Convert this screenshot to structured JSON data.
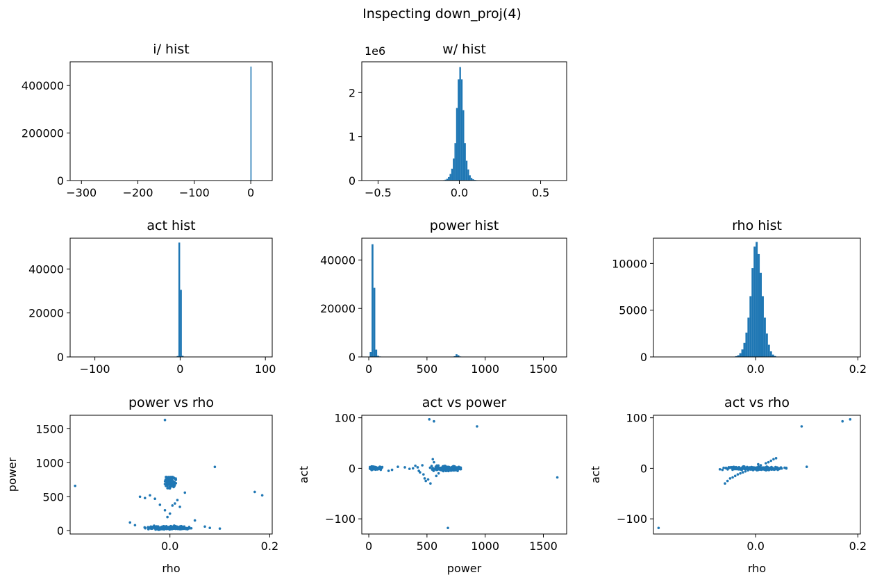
{
  "figure": {
    "title": "Inspecting down_proj(4)"
  },
  "colors": {
    "series": "#1f77b4",
    "axis": "#000000",
    "background": "#ffffff"
  },
  "chart_data": [
    {
      "id": "i-hist",
      "type": "bar",
      "title": "i/ hist",
      "xlabel": "",
      "ylabel": "",
      "xlim": [
        -320,
        38
      ],
      "ylim": [
        0,
        500000
      ],
      "xticks": [
        {
          "v": -300,
          "label": "−300"
        },
        {
          "v": -200,
          "label": "−200"
        },
        {
          "v": -100,
          "label": "−100"
        },
        {
          "v": 0,
          "label": "0"
        }
      ],
      "yticks": [
        {
          "v": 0,
          "label": "0"
        },
        {
          "v": 200000,
          "label": "200000"
        },
        {
          "v": 400000,
          "label": "400000"
        }
      ],
      "bins": [
        {
          "x0": -0.6,
          "x1": 0.6,
          "count": 480000
        }
      ],
      "offset_text": ""
    },
    {
      "id": "w-hist",
      "type": "bar",
      "title": "w/ hist",
      "xlabel": "",
      "ylabel": "",
      "xlim": [
        -0.6,
        0.66
      ],
      "ylim": [
        0,
        2.7
      ],
      "xticks": [
        {
          "v": -0.5,
          "label": "−0.5"
        },
        {
          "v": 0.0,
          "label": "0.0"
        },
        {
          "v": 0.5,
          "label": "0.5"
        }
      ],
      "yticks": [
        {
          "v": 0,
          "label": "0"
        },
        {
          "v": 1,
          "label": "1"
        },
        {
          "v": 2,
          "label": "2"
        }
      ],
      "offset_text": "1e6",
      "bins": [
        {
          "x0": -0.1,
          "x1": -0.09,
          "count": 0.01
        },
        {
          "x0": -0.09,
          "x1": -0.08,
          "count": 0.02
        },
        {
          "x0": -0.08,
          "x1": -0.07,
          "count": 0.04
        },
        {
          "x0": -0.07,
          "x1": -0.06,
          "count": 0.08
        },
        {
          "x0": -0.06,
          "x1": -0.05,
          "count": 0.15
        },
        {
          "x0": -0.05,
          "x1": -0.04,
          "count": 0.27
        },
        {
          "x0": -0.04,
          "x1": -0.03,
          "count": 0.5
        },
        {
          "x0": -0.03,
          "x1": -0.02,
          "count": 0.85
        },
        {
          "x0": -0.02,
          "x1": -0.01,
          "count": 1.65
        },
        {
          "x0": -0.01,
          "x1": 0.0,
          "count": 2.3
        },
        {
          "x0": 0.0,
          "x1": 0.01,
          "count": 2.58
        },
        {
          "x0": 0.01,
          "x1": 0.02,
          "count": 2.3
        },
        {
          "x0": 0.02,
          "x1": 0.03,
          "count": 1.6
        },
        {
          "x0": 0.03,
          "x1": 0.04,
          "count": 0.85
        },
        {
          "x0": 0.04,
          "x1": 0.05,
          "count": 0.45
        },
        {
          "x0": 0.05,
          "x1": 0.06,
          "count": 0.25
        },
        {
          "x0": 0.06,
          "x1": 0.07,
          "count": 0.12
        },
        {
          "x0": 0.07,
          "x1": 0.08,
          "count": 0.06
        },
        {
          "x0": 0.08,
          "x1": 0.09,
          "count": 0.03
        },
        {
          "x0": 0.09,
          "x1": 0.1,
          "count": 0.015
        },
        {
          "x0": 0.1,
          "x1": 0.11,
          "count": 0.01
        },
        {
          "x0": 0.11,
          "x1": 0.12,
          "count": 0.006
        },
        {
          "x0": 0.12,
          "x1": 0.13,
          "count": 0.004
        }
      ]
    },
    {
      "id": "act-hist",
      "type": "bar",
      "title": "act hist",
      "xlabel": "",
      "ylabel": "",
      "xlim": [
        -129,
        108
      ],
      "ylim": [
        0,
        54000
      ],
      "xticks": [
        {
          "v": -100,
          "label": "−100"
        },
        {
          "v": 0,
          "label": "0"
        },
        {
          "v": 100,
          "label": "100"
        }
      ],
      "yticks": [
        {
          "v": 0,
          "label": "0"
        },
        {
          "v": 20000,
          "label": "20000"
        },
        {
          "v": 40000,
          "label": "40000"
        }
      ],
      "offset_text": "",
      "bins": [
        {
          "x0": -4.0,
          "x1": -2.0,
          "count": 400
        },
        {
          "x0": -2.0,
          "x1": 0.0,
          "count": 52000
        },
        {
          "x0": 0.0,
          "x1": 2.0,
          "count": 30500
        },
        {
          "x0": 2.0,
          "x1": 4.0,
          "count": 500
        }
      ]
    },
    {
      "id": "power-hist",
      "type": "bar",
      "title": "power hist",
      "xlabel": "",
      "ylabel": "",
      "xlim": [
        -60,
        1700
      ],
      "ylim": [
        0,
        49000
      ],
      "xticks": [
        {
          "v": 0,
          "label": "0"
        },
        {
          "v": 500,
          "label": "500"
        },
        {
          "v": 1000,
          "label": "1000"
        },
        {
          "v": 1500,
          "label": "1500"
        }
      ],
      "yticks": [
        {
          "v": 0,
          "label": "0"
        },
        {
          "v": 20000,
          "label": "20000"
        },
        {
          "v": 40000,
          "label": "40000"
        }
      ],
      "offset_text": "",
      "bins": [
        {
          "x0": 8,
          "x1": 24,
          "count": 2000
        },
        {
          "x0": 24,
          "x1": 40,
          "count": 46500
        },
        {
          "x0": 40,
          "x1": 56,
          "count": 28500
        },
        {
          "x0": 56,
          "x1": 72,
          "count": 3000
        },
        {
          "x0": 72,
          "x1": 88,
          "count": 500
        },
        {
          "x0": 88,
          "x1": 104,
          "count": 200
        },
        {
          "x0": 730,
          "x1": 746,
          "count": 300
        },
        {
          "x0": 746,
          "x1": 762,
          "count": 1100
        },
        {
          "x0": 762,
          "x1": 778,
          "count": 700
        },
        {
          "x0": 778,
          "x1": 794,
          "count": 200
        }
      ]
    },
    {
      "id": "rho-hist",
      "type": "bar",
      "title": "rho hist",
      "xlabel": "",
      "ylabel": "",
      "xlim": [
        -0.2,
        0.205
      ],
      "ylim": [
        0,
        12700
      ],
      "xticks": [
        {
          "v": 0.0,
          "label": "0.0"
        },
        {
          "v": 0.2,
          "label": "0.2"
        }
      ],
      "yticks": [
        {
          "v": 0,
          "label": "0"
        },
        {
          "v": 5000,
          "label": "5000"
        },
        {
          "v": 10000,
          "label": "10000"
        }
      ],
      "offset_text": "",
      "bins": [
        {
          "x0": -0.04,
          "x1": -0.036,
          "count": 80
        },
        {
          "x0": -0.036,
          "x1": -0.032,
          "count": 180
        },
        {
          "x0": -0.032,
          "x1": -0.028,
          "count": 400
        },
        {
          "x0": -0.028,
          "x1": -0.024,
          "count": 800
        },
        {
          "x0": -0.024,
          "x1": -0.02,
          "count": 1500
        },
        {
          "x0": -0.02,
          "x1": -0.016,
          "count": 2600
        },
        {
          "x0": -0.016,
          "x1": -0.012,
          "count": 4200
        },
        {
          "x0": -0.012,
          "x1": -0.008,
          "count": 6500
        },
        {
          "x0": -0.008,
          "x1": -0.004,
          "count": 9500
        },
        {
          "x0": -0.004,
          "x1": 0.0,
          "count": 11800
        },
        {
          "x0": 0.0,
          "x1": 0.004,
          "count": 12300
        },
        {
          "x0": 0.004,
          "x1": 0.008,
          "count": 11000
        },
        {
          "x0": 0.008,
          "x1": 0.012,
          "count": 9000
        },
        {
          "x0": 0.012,
          "x1": 0.016,
          "count": 6500
        },
        {
          "x0": 0.016,
          "x1": 0.02,
          "count": 4200
        },
        {
          "x0": 0.02,
          "x1": 0.024,
          "count": 2500
        },
        {
          "x0": 0.024,
          "x1": 0.028,
          "count": 1300
        },
        {
          "x0": 0.028,
          "x1": 0.032,
          "count": 600
        },
        {
          "x0": 0.032,
          "x1": 0.036,
          "count": 250
        },
        {
          "x0": 0.036,
          "x1": 0.04,
          "count": 100
        }
      ]
    },
    {
      "id": "power-vs-rho",
      "type": "scatter",
      "title": "power vs rho",
      "xlabel": "rho",
      "ylabel": "power",
      "xlim": [
        -0.2,
        0.205
      ],
      "ylim": [
        -50,
        1700
      ],
      "xticks": [
        {
          "v": 0.0,
          "label": "0.0"
        },
        {
          "v": 0.2,
          "label": "0.2"
        }
      ],
      "yticks": [
        {
          "v": 0,
          "label": "0"
        },
        {
          "v": 500,
          "label": "500"
        },
        {
          "v": 1000,
          "label": "1000"
        },
        {
          "v": 1500,
          "label": "1500"
        }
      ],
      "offset_text": "",
      "clusters": [
        {
          "cx": 0.0,
          "cy": 40,
          "sx": 0.02,
          "sy": 12,
          "n": 220,
          "xmin": -0.06,
          "xmax": 0.06,
          "ymin": 5,
          "ymax": 120
        },
        {
          "cx": 0.0,
          "cy": 720,
          "sx": 0.006,
          "sy": 40,
          "n": 110,
          "xmin": -0.015,
          "xmax": 0.012,
          "ymin": 560,
          "ymax": 790
        }
      ],
      "points": [
        [
          -0.19,
          660
        ],
        [
          -0.01,
          1630
        ],
        [
          0.09,
          940
        ],
        [
          0.17,
          570
        ],
        [
          0.185,
          520
        ],
        [
          0.1,
          30
        ],
        [
          -0.06,
          500
        ],
        [
          -0.05,
          480
        ],
        [
          -0.04,
          520
        ],
        [
          -0.03,
          470
        ],
        [
          -0.02,
          380
        ],
        [
          -0.01,
          300
        ],
        [
          0.005,
          370
        ],
        [
          0.01,
          400
        ],
        [
          0.015,
          450
        ],
        [
          0.02,
          350
        ],
        [
          0.03,
          560
        ],
        [
          -0.005,
          200
        ],
        [
          0.0,
          250
        ],
        [
          -0.08,
          120
        ],
        [
          0.07,
          60
        ],
        [
          0.08,
          40
        ],
        [
          -0.07,
          80
        ],
        [
          0.05,
          150
        ]
      ]
    },
    {
      "id": "act-vs-power",
      "type": "scatter",
      "title": "act vs power",
      "xlabel": "power",
      "ylabel": "act",
      "xlim": [
        -60,
        1700
      ],
      "ylim": [
        -130,
        105
      ],
      "xticks": [
        {
          "v": 0,
          "label": "0"
        },
        {
          "v": 500,
          "label": "500"
        },
        {
          "v": 1000,
          "label": "1000"
        },
        {
          "v": 1500,
          "label": "1500"
        }
      ],
      "yticks": [
        {
          "v": -100,
          "label": "−100"
        },
        {
          "v": 0,
          "label": "0"
        },
        {
          "v": 100,
          "label": "100"
        }
      ],
      "offset_text": "",
      "clusters": [
        {
          "cx": 50,
          "cy": 0,
          "sx": 25,
          "sy": 1.5,
          "n": 120,
          "xmin": 10,
          "xmax": 120,
          "ymin": -4,
          "ymax": 4
        },
        {
          "cx": 680,
          "cy": 0,
          "sx": 60,
          "sy": 2.5,
          "n": 180,
          "xmin": 520,
          "xmax": 790,
          "ymin": -8,
          "ymax": 8
        }
      ],
      "points": [
        [
          520,
          97
        ],
        [
          560,
          93
        ],
        [
          930,
          83
        ],
        [
          1620,
          -18
        ],
        [
          680,
          -118
        ],
        [
          250,
          3
        ],
        [
          310,
          2
        ],
        [
          420,
          2
        ],
        [
          430,
          -5
        ],
        [
          440,
          -8
        ],
        [
          470,
          -12
        ],
        [
          480,
          -20
        ],
        [
          490,
          -25
        ],
        [
          510,
          -22
        ],
        [
          530,
          -30
        ],
        [
          550,
          18
        ],
        [
          560,
          12
        ],
        [
          580,
          -15
        ],
        [
          600,
          -10
        ],
        [
          170,
          -5
        ],
        [
          200,
          -3
        ],
        [
          380,
          0
        ],
        [
          400,
          5
        ],
        [
          460,
          6
        ],
        [
          350,
          -1
        ]
      ]
    },
    {
      "id": "act-vs-rho",
      "type": "scatter",
      "title": "act vs rho",
      "xlabel": "rho",
      "ylabel": "act",
      "xlim": [
        -0.2,
        0.205
      ],
      "ylim": [
        -130,
        105
      ],
      "xticks": [
        {
          "v": 0.0,
          "label": "0.0"
        },
        {
          "v": 0.2,
          "label": "0.2"
        }
      ],
      "yticks": [
        {
          "v": -100,
          "label": "−100"
        },
        {
          "v": 0,
          "label": "0"
        },
        {
          "v": 100,
          "label": "100"
        }
      ],
      "offset_text": "",
      "clusters": [
        {
          "cx": 0.0,
          "cy": 0,
          "sx": 0.025,
          "sy": 1.5,
          "n": 260,
          "xmin": -0.07,
          "xmax": 0.06,
          "ymin": -4,
          "ymax": 5
        }
      ],
      "points": [
        [
          -0.19,
          -118
        ],
        [
          0.09,
          83
        ],
        [
          0.1,
          3
        ],
        [
          0.17,
          93
        ],
        [
          0.185,
          97
        ],
        [
          -0.06,
          -30
        ],
        [
          -0.055,
          -25
        ],
        [
          -0.05,
          -20
        ],
        [
          -0.045,
          -18
        ],
        [
          -0.04,
          -15
        ],
        [
          -0.035,
          -12
        ],
        [
          -0.03,
          -10
        ],
        [
          -0.025,
          -8
        ],
        [
          -0.02,
          -6
        ],
        [
          -0.015,
          -4
        ],
        [
          0.02,
          10
        ],
        [
          0.025,
          12
        ],
        [
          0.03,
          15
        ],
        [
          0.035,
          18
        ],
        [
          0.01,
          6
        ],
        [
          0.005,
          8
        ],
        [
          0.04,
          20
        ],
        [
          -0.065,
          -3
        ],
        [
          -0.07,
          -2
        ]
      ]
    }
  ]
}
